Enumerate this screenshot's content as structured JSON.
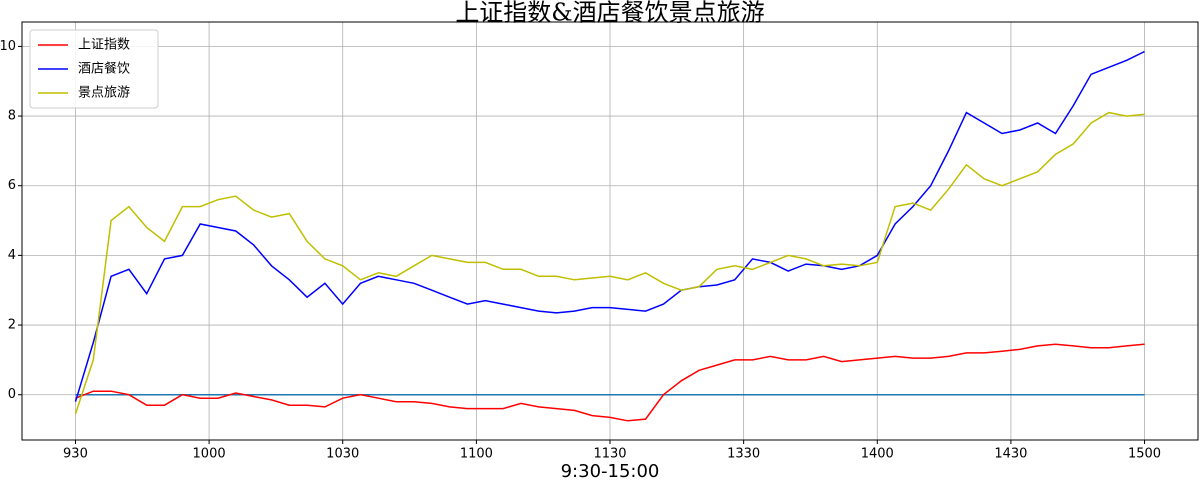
{
  "chart_data": {
    "type": "line",
    "title": "上证指数&酒店餐饮景点旅游",
    "x_label": "9:30-15:00",
    "x": [
      0,
      4,
      8,
      12,
      16,
      20,
      24,
      28,
      32,
      36,
      40,
      44,
      48,
      52,
      56,
      60,
      64,
      68,
      72,
      76,
      80,
      84,
      88,
      92,
      96,
      100,
      104,
      108,
      112,
      116,
      120,
      124,
      128,
      132,
      136,
      140,
      144,
      148,
      152,
      156,
      160,
      164,
      168,
      172,
      176,
      180,
      184,
      188,
      192,
      196,
      200,
      204,
      208,
      212,
      216,
      220,
      224,
      228,
      232,
      236,
      240
    ],
    "series": [
      {
        "name": "上证指数",
        "color": "#ff0000",
        "values": [
          -0.1,
          0.1,
          0.1,
          0.0,
          -0.3,
          -0.3,
          0.0,
          -0.1,
          -0.1,
          0.05,
          -0.05,
          -0.15,
          -0.3,
          -0.3,
          -0.35,
          -0.1,
          0.0,
          -0.1,
          -0.2,
          -0.2,
          -0.25,
          -0.35,
          -0.4,
          -0.4,
          -0.4,
          -0.25,
          -0.35,
          -0.4,
          -0.45,
          -0.6,
          -0.65,
          -0.75,
          -0.7,
          0.0,
          0.4,
          0.7,
          0.85,
          1.0,
          1.0,
          1.1,
          1.0,
          1.0,
          1.1,
          0.95,
          1.0,
          1.05,
          1.1,
          1.05,
          1.05,
          1.1,
          1.2,
          1.2,
          1.25,
          1.3,
          1.4,
          1.45,
          1.4,
          1.35,
          1.35,
          1.4,
          1.45
        ]
      },
      {
        "name": "酒店餐饮",
        "color": "#0000ff",
        "values": [
          -0.2,
          1.5,
          3.4,
          3.6,
          2.9,
          3.9,
          4.0,
          4.9,
          4.8,
          4.7,
          4.3,
          3.7,
          3.3,
          2.8,
          3.2,
          2.6,
          3.2,
          3.4,
          3.3,
          3.2,
          3.0,
          2.8,
          2.6,
          2.7,
          2.6,
          2.5,
          2.4,
          2.35,
          2.4,
          2.5,
          2.5,
          2.45,
          2.4,
          2.6,
          3.0,
          3.1,
          3.15,
          3.3,
          3.9,
          3.8,
          3.55,
          3.75,
          3.7,
          3.6,
          3.7,
          4.0,
          4.9,
          5.4,
          6.0,
          7.0,
          8.1,
          7.8,
          7.5,
          7.6,
          7.8,
          7.5,
          8.3,
          9.2,
          9.4,
          9.6,
          9.85
        ]
      },
      {
        "name": "景点旅游",
        "color": "#bfbf00",
        "values": [
          -0.55,
          1.0,
          5.0,
          5.4,
          4.8,
          4.4,
          5.4,
          5.4,
          5.6,
          5.7,
          5.3,
          5.1,
          5.2,
          4.4,
          3.9,
          3.7,
          3.3,
          3.5,
          3.4,
          3.7,
          4.0,
          3.9,
          3.8,
          3.8,
          3.6,
          3.6,
          3.4,
          3.4,
          3.3,
          3.35,
          3.4,
          3.3,
          3.5,
          3.2,
          3.0,
          3.1,
          3.6,
          3.7,
          3.6,
          3.8,
          4.0,
          3.9,
          3.7,
          3.75,
          3.7,
          3.8,
          5.4,
          5.5,
          5.3,
          5.9,
          6.6,
          6.2,
          6.0,
          6.2,
          6.4,
          6.9,
          7.2,
          7.8,
          8.1,
          8.0,
          8.05
        ]
      }
    ],
    "hlines": [
      {
        "y": 0,
        "color": "#1f77b4"
      }
    ],
    "xlim": [
      -12,
      252
    ],
    "ylim": [
      -1.3,
      10.7
    ],
    "xticks": [
      {
        "value": 0,
        "label": "930"
      },
      {
        "value": 30,
        "label": "1000"
      },
      {
        "value": 60,
        "label": "1030"
      },
      {
        "value": 90,
        "label": "1100"
      },
      {
        "value": 120,
        "label": "1130"
      },
      {
        "value": 150,
        "label": "1330"
      },
      {
        "value": 180,
        "label": "1400"
      },
      {
        "value": 210,
        "label": "1430"
      },
      {
        "value": 240,
        "label": "1500"
      }
    ],
    "yticks": [
      0,
      2,
      4,
      6,
      8,
      10
    ],
    "grid": true,
    "legend": "upper-left"
  }
}
